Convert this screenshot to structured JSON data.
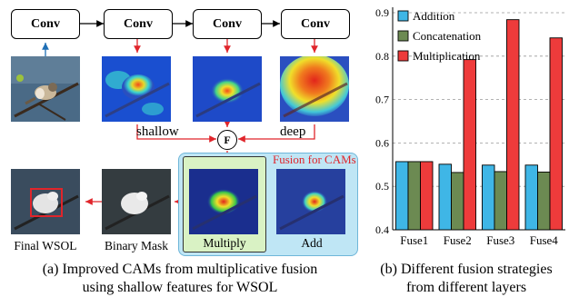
{
  "diagram": {
    "conv_labels": [
      "Conv",
      "Conv",
      "Conv",
      "Conv"
    ],
    "shallow_label": "shallow",
    "deep_label": "deep",
    "fuse_symbol": "F",
    "fusion_title": "Fusion for CAMs",
    "multiply_label": "Multiply",
    "add_label": "Add",
    "binary_mask_label": "Binary Mask",
    "final_wsol_label": "Final WSOL",
    "caption_line1": "(a)  Improved CAMs from multiplicative fusion",
    "caption_line2": "using shallow features for WSOL",
    "colors": {
      "red_arrow": "#e0252b",
      "blue_arrow": "#1f6fb5",
      "fusion_bg": "#bfe6f5",
      "multiply_bg": "#d9f2c4"
    }
  },
  "chart_data": {
    "type": "bar",
    "categories": [
      "Fuse1",
      "Fuse2",
      "Fuse3",
      "Fuse4"
    ],
    "series": [
      {
        "name": "Addition",
        "color": "#3fb6e6",
        "values": [
          0.557,
          0.551,
          0.549,
          0.549
        ]
      },
      {
        "name": "Concatenation",
        "color": "#6c8a52",
        "values": [
          0.557,
          0.532,
          0.534,
          0.533
        ]
      },
      {
        "name": "Multiplication",
        "color": "#ee3b3b",
        "values": [
          0.557,
          0.792,
          0.884,
          0.842
        ]
      }
    ],
    "ylim": [
      0.4,
      0.9
    ],
    "yticks": [
      "0.4",
      "0.5",
      "0.6",
      "0.7",
      "0.8",
      "0.9"
    ],
    "grid": true,
    "legend": "top-left",
    "caption_line1": "(b) Different fusion strategies",
    "caption_line2": "from different layers"
  }
}
